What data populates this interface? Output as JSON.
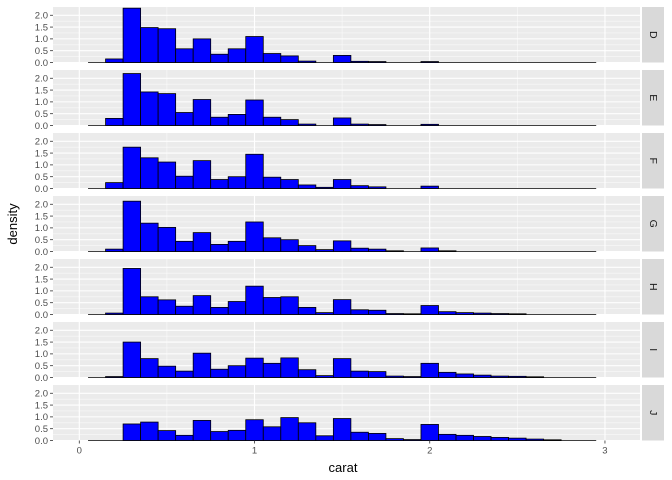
{
  "chart_data": {
    "type": "bar",
    "subtype": "faceted-histogram",
    "xlabel": "carat",
    "ylabel": "density",
    "xlim": [
      -0.15,
      3.2
    ],
    "ylim": [
      0,
      2.35
    ],
    "x_ticks": [
      0,
      1,
      2,
      3
    ],
    "x_tick_labels": [
      "0",
      "1",
      "2",
      "3"
    ],
    "y_ticks": [
      0.0,
      0.5,
      1.0,
      1.5,
      2.0
    ],
    "y_tick_labels": [
      "0.0",
      "0.5",
      "1.0",
      "1.5",
      "2.0"
    ],
    "bin_width": 0.1,
    "bin_centers": [
      0.2,
      0.3,
      0.4,
      0.5,
      0.6,
      0.7,
      0.8,
      0.9,
      1.0,
      1.1,
      1.2,
      1.3,
      1.4,
      1.5,
      1.6,
      1.7,
      1.8,
      1.9,
      2.0,
      2.1,
      2.2,
      2.3,
      2.4,
      2.5,
      2.6,
      2.7,
      2.8,
      2.9
    ],
    "span_start": 0.05,
    "span_end": 2.95,
    "grid": true,
    "fill_color": "#0000ff",
    "outline_color": "#000000",
    "panel_bg": "#ebebeb",
    "strip_bg": "#d9d9d9",
    "facets": [
      {
        "label": "D",
        "values": [
          0.15,
          2.3,
          1.48,
          1.43,
          0.58,
          1.0,
          0.35,
          0.58,
          1.1,
          0.38,
          0.28,
          0.06,
          0.02,
          0.3,
          0.05,
          0.04,
          0.02,
          0.01,
          0.04,
          0.01,
          0.01,
          0.01,
          0.01,
          0.01,
          0.01,
          0.01,
          0.01,
          0.0
        ]
      },
      {
        "label": "E",
        "values": [
          0.3,
          2.2,
          1.42,
          1.35,
          0.55,
          1.1,
          0.35,
          0.47,
          1.08,
          0.35,
          0.25,
          0.06,
          0.02,
          0.32,
          0.06,
          0.04,
          0.02,
          0.01,
          0.05,
          0.01,
          0.01,
          0.01,
          0.01,
          0.01,
          0.01,
          0.01,
          0.01,
          0.0
        ]
      },
      {
        "label": "F",
        "values": [
          0.25,
          1.75,
          1.3,
          1.12,
          0.52,
          1.18,
          0.38,
          0.5,
          1.45,
          0.48,
          0.38,
          0.15,
          0.05,
          0.38,
          0.12,
          0.07,
          0.02,
          0.01,
          0.1,
          0.02,
          0.01,
          0.01,
          0.01,
          0.01,
          0.01,
          0.01,
          0.01,
          0.0
        ]
      },
      {
        "label": "G",
        "values": [
          0.1,
          2.13,
          1.2,
          1.02,
          0.43,
          0.8,
          0.3,
          0.43,
          1.25,
          0.58,
          0.5,
          0.25,
          0.08,
          0.45,
          0.14,
          0.1,
          0.03,
          0.02,
          0.15,
          0.03,
          0.02,
          0.01,
          0.01,
          0.01,
          0.01,
          0.01,
          0.01,
          0.0
        ]
      },
      {
        "label": "H",
        "values": [
          0.06,
          1.95,
          0.75,
          0.62,
          0.35,
          0.8,
          0.3,
          0.55,
          1.2,
          0.72,
          0.75,
          0.3,
          0.08,
          0.63,
          0.2,
          0.18,
          0.04,
          0.03,
          0.38,
          0.12,
          0.08,
          0.06,
          0.04,
          0.03,
          0.02,
          0.01,
          0.01,
          0.0
        ]
      },
      {
        "label": "I",
        "values": [
          0.04,
          1.5,
          0.8,
          0.48,
          0.27,
          1.03,
          0.35,
          0.5,
          0.82,
          0.6,
          0.83,
          0.33,
          0.08,
          0.8,
          0.27,
          0.25,
          0.06,
          0.04,
          0.6,
          0.22,
          0.15,
          0.1,
          0.06,
          0.05,
          0.03,
          0.02,
          0.01,
          0.0
        ]
      },
      {
        "label": "J",
        "values": [
          0.02,
          0.7,
          0.78,
          0.42,
          0.22,
          0.85,
          0.38,
          0.43,
          0.88,
          0.58,
          0.97,
          0.75,
          0.2,
          0.93,
          0.35,
          0.3,
          0.08,
          0.04,
          0.68,
          0.26,
          0.22,
          0.17,
          0.13,
          0.1,
          0.06,
          0.03,
          0.02,
          0.01
        ]
      }
    ]
  }
}
